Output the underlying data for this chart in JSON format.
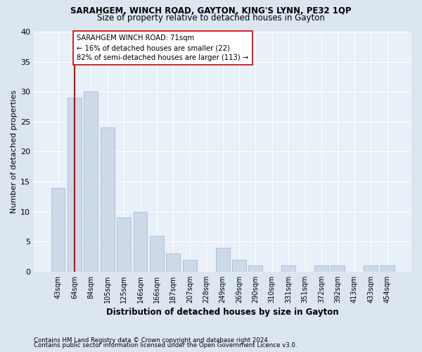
{
  "title1": "SARAHGEM, WINCH ROAD, GAYTON, KING'S LYNN, PE32 1QP",
  "title2": "Size of property relative to detached houses in Gayton",
  "xlabel": "Distribution of detached houses by size in Gayton",
  "ylabel": "Number of detached properties",
  "categories": [
    "43sqm",
    "64sqm",
    "84sqm",
    "105sqm",
    "125sqm",
    "146sqm",
    "166sqm",
    "187sqm",
    "207sqm",
    "228sqm",
    "249sqm",
    "269sqm",
    "290sqm",
    "310sqm",
    "331sqm",
    "351sqm",
    "372sqm",
    "392sqm",
    "413sqm",
    "433sqm",
    "454sqm"
  ],
  "values": [
    14,
    29,
    30,
    24,
    9,
    10,
    6,
    3,
    2,
    0,
    4,
    2,
    1,
    0,
    1,
    0,
    1,
    1,
    0,
    1,
    1
  ],
  "bar_color": "#ccd9e8",
  "bar_edgecolor": "#aabbd0",
  "vline_x": 1.0,
  "vline_color": "#cc0000",
  "annotation_text": "SARAHGEM WINCH ROAD: 71sqm\n← 16% of detached houses are smaller (22)\n82% of semi-detached houses are larger (113) →",
  "annotation_box_color": "#ffffff",
  "annotation_box_edgecolor": "#cc0000",
  "ylim": [
    0,
    40
  ],
  "yticks": [
    0,
    5,
    10,
    15,
    20,
    25,
    30,
    35,
    40
  ],
  "footer1": "Contains HM Land Registry data © Crown copyright and database right 2024.",
  "footer2": "Contains public sector information licensed under the Open Government Licence v3.0.",
  "bg_color": "#dce6f0",
  "plot_bg_color": "#e8f0f8"
}
